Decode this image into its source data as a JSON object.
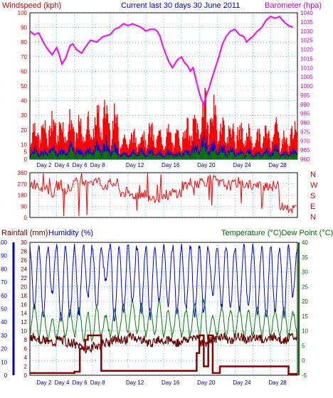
{
  "header": {
    "wind_label": "Windspeed (kph)",
    "title": "Current last 30 days 30 June 2011",
    "baro_label": "Barometer (hpa)"
  },
  "colors": {
    "wind_gust": "#ff0000",
    "wind_avg": "#0000dd",
    "wind_low": "#008000",
    "barometer": "#ff00ff",
    "direction": "#ff0000",
    "humidity": "#0000dd",
    "temperature": "#008000",
    "dew_point": "#660000",
    "rainfall": "#880000",
    "left_axis_title": "#cc0000",
    "right_axis_title": "#cc00cc",
    "title": "#0000cc",
    "temp_axis": "#006600"
  },
  "x_ticks": [
    "Day 2",
    "Day 4",
    "Day 6",
    "Day 8",
    "Day 12",
    "Day 16",
    "Day 20",
    "Day 24",
    "Day 28"
  ],
  "chart_data": [
    {
      "type": "line",
      "name": "wind-barometer",
      "x_range": [
        1,
        31
      ],
      "ylim_left": [
        0,
        100
      ],
      "ylim_right": [
        960,
        1040
      ],
      "yticks_left": [
        "0",
        "5",
        "10",
        "20",
        "30",
        "40",
        "50",
        "60",
        "70",
        "80",
        "90",
        "100"
      ],
      "yticks_right": [
        "960",
        "965",
        "970",
        "975",
        "980",
        "985",
        "990",
        "995",
        "1000",
        "1005",
        "1010",
        "1015",
        "1020",
        "1025",
        "1030",
        "1035",
        "1040"
      ],
      "grid": true,
      "wind_gust_daily": [
        28,
        26,
        34,
        30,
        32,
        27,
        30,
        36,
        41,
        34,
        18,
        20,
        22,
        24,
        20,
        22,
        19,
        27,
        31,
        45,
        40,
        31,
        27,
        24,
        22,
        20,
        23,
        28,
        18,
        25
      ],
      "wind_avg_daily": [
        9,
        8,
        11,
        10,
        12,
        9,
        10,
        13,
        15,
        11,
        6,
        7,
        8,
        8,
        6,
        7,
        6,
        9,
        12,
        18,
        14,
        11,
        9,
        8,
        7,
        6,
        8,
        10,
        6,
        8
      ],
      "barometer": {
        "x": [
          1,
          1.5,
          2,
          2.5,
          3,
          3.5,
          4,
          4.3,
          4.6,
          5,
          5.5,
          5.8,
          6.2,
          6.8,
          7.2,
          7.8,
          8.5,
          9.2,
          10,
          10.5,
          11,
          11.5,
          12,
          12.5,
          13,
          13.5,
          14,
          14.5,
          15,
          15.3,
          15.6,
          15.9,
          16.2,
          16.6,
          17,
          17.5,
          18,
          18.3,
          18.7,
          19,
          19.3,
          19.6,
          19.9,
          20.2,
          20.5,
          20.8,
          21.1,
          21.4,
          21.8,
          22.2,
          22.6,
          23,
          23.5,
          24,
          24.5,
          25,
          25.3,
          25.7,
          26,
          26.5,
          27,
          27.5,
          28,
          28.5,
          29,
          29.5,
          30,
          30.5
        ],
        "y": [
          1030,
          1028,
          1029,
          1024,
          1020,
          1017,
          1021,
          1017,
          1012,
          1015,
          1022,
          1023,
          1020,
          1018,
          1021,
          1025,
          1024,
          1027,
          1028,
          1031,
          1032,
          1034,
          1033,
          1034,
          1033,
          1032,
          1030,
          1031,
          1031,
          1030,
          1027,
          1022,
          1018,
          1013,
          1010,
          1014,
          1016,
          1013,
          1011,
          1008,
          1010,
          1004,
          998,
          993,
          990,
          995,
          999,
          1004,
          1010,
          1016,
          1023,
          1027,
          1030,
          1031,
          1028,
          1027,
          1024,
          1026,
          1027,
          1030,
          1032,
          1036,
          1038,
          1037,
          1038,
          1035,
          1033,
          1032
        ]
      }
    },
    {
      "type": "scatter",
      "name": "wind-direction",
      "x_range": [
        1,
        31
      ],
      "ylim": [
        0,
        360
      ],
      "yticks": [
        "0",
        "90",
        "180",
        "270",
        "360"
      ],
      "compass_labels": [
        "N",
        "W",
        "S",
        "E",
        "N"
      ],
      "grid": true,
      "direction_daily": [
        270,
        250,
        200,
        260,
        230,
        280,
        300,
        290,
        260,
        270,
        200,
        180,
        190,
        170,
        160,
        180,
        200,
        260,
        280,
        290,
        300,
        270,
        260,
        280,
        270,
        250,
        260,
        250,
        100,
        70
      ]
    },
    {
      "type": "line",
      "name": "rain-humidity-temperature",
      "x_range": [
        1,
        31
      ],
      "left_axis_title_rain": "Rainfall (mm)",
      "left_axis_title_hum": "Humidity (%)",
      "right_axis_title": "Temperature (°C)Dew Point (°C)",
      "ylim_humidity": [
        0,
        100
      ],
      "ylim_rain": [
        0,
        30
      ],
      "ylim_temp": [
        -5,
        40
      ],
      "yticks_humidity": [
        "0",
        "10",
        "20",
        "30",
        "40",
        "50",
        "60",
        "70",
        "80",
        "90",
        "100"
      ],
      "yticks_rain": [
        "0",
        "2",
        "4",
        "6",
        "8",
        "10",
        "12",
        "14",
        "16",
        "18",
        "20",
        "22",
        "24",
        "26",
        "28",
        "30"
      ],
      "yticks_temp": [
        "-5",
        "0",
        "5",
        "10",
        "15",
        "20",
        "25",
        "30",
        "35",
        "40"
      ],
      "grid": true,
      "humidity_min_daily": [
        52,
        45,
        62,
        40,
        44,
        46,
        58,
        50,
        70,
        40,
        46,
        55,
        48,
        44,
        55,
        52,
        48,
        50,
        45,
        46,
        60,
        52,
        52,
        48,
        50,
        46,
        42,
        48,
        45,
        60
      ],
      "temp_max_daily": [
        19,
        17,
        14,
        16,
        17,
        18,
        16,
        18,
        15,
        17,
        19,
        20,
        19,
        18,
        20,
        17,
        18,
        17,
        19,
        20,
        15,
        18,
        17,
        18,
        17,
        18,
        17,
        17,
        18,
        16
      ],
      "temp_min_daily": [
        9,
        8,
        7,
        8,
        9,
        8,
        6,
        7,
        9,
        8,
        9,
        10,
        9,
        8,
        9,
        8,
        9,
        8,
        9,
        7,
        8,
        9,
        8,
        9,
        8,
        9,
        8,
        9,
        8,
        9
      ],
      "dew_daily": [
        8,
        7,
        6,
        7,
        6,
        5,
        4,
        5,
        6,
        7,
        7,
        8,
        7,
        6,
        7,
        7,
        6,
        7,
        8,
        6,
        7,
        8,
        7,
        8,
        7,
        8,
        7,
        8,
        7,
        8
      ],
      "rain_cumulative": {
        "x": [
          1,
          3,
          6,
          6.6,
          7,
          7.2,
          7.5,
          8.6,
          9,
          12,
          15,
          17,
          19.5,
          19.7,
          20,
          20.5,
          21,
          21.5,
          22,
          22.3,
          23,
          30,
          31
        ],
        "y": [
          0.5,
          0.5,
          0.8,
          6,
          6,
          8,
          9,
          9,
          1,
          1,
          1,
          1,
          1,
          5,
          9,
          2,
          9,
          0.5,
          0.5,
          2,
          2,
          0.3,
          0.3
        ]
      }
    }
  ]
}
